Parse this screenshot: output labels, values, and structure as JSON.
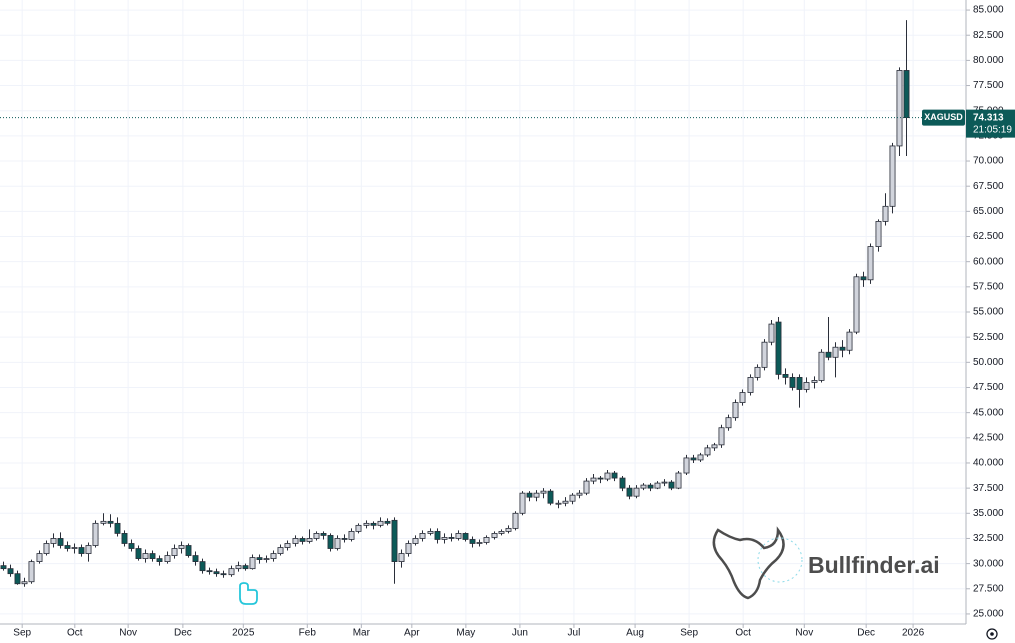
{
  "chart_data": {
    "type": "candlestick",
    "symbol": "XAGUSD",
    "countdown": "21:05:19",
    "watermark": "Bullfinder.ai",
    "up_color": "#d1d4dc",
    "down_color": "#0c5a58",
    "border_color": "#2a2e39",
    "grid": true,
    "ylim": [
      24,
      86
    ],
    "xlim": [
      -0.42,
      135.3
    ],
    "yticks": [
      {
        "value": 25,
        "label": "25.000"
      },
      {
        "value": 27.5,
        "label": "27.500"
      },
      {
        "value": 30,
        "label": "30.000"
      },
      {
        "value": 32.5,
        "label": "32.500"
      },
      {
        "value": 35,
        "label": "35.000"
      },
      {
        "value": 37.5,
        "label": "37.500"
      },
      {
        "value": 40,
        "label": "40.000"
      },
      {
        "value": 42.5,
        "label": "42.500"
      },
      {
        "value": 45,
        "label": "45.000"
      },
      {
        "value": 47.5,
        "label": "47.500"
      },
      {
        "value": 50,
        "label": "50.000"
      },
      {
        "value": 52.5,
        "label": "52.500"
      },
      {
        "value": 55,
        "label": "55.000"
      },
      {
        "value": 57.5,
        "label": "57.500"
      },
      {
        "value": 60,
        "label": "60.000"
      },
      {
        "value": 62.5,
        "label": "62.500"
      },
      {
        "value": 65,
        "label": "65.000"
      },
      {
        "value": 67.5,
        "label": "67.500"
      },
      {
        "value": 70,
        "label": "70.000"
      },
      {
        "value": 72.5,
        "label": "72.500"
      },
      {
        "value": 75,
        "label": "75.000"
      },
      {
        "value": 77.5,
        "label": "77.500"
      },
      {
        "value": 80,
        "label": "80.000"
      },
      {
        "value": 82.5,
        "label": "82.500"
      },
      {
        "value": 85,
        "label": "85.000"
      }
    ],
    "xticks": [
      {
        "value": 2.7,
        "label": "Sep"
      },
      {
        "value": 10.1,
        "label": "Oct"
      },
      {
        "value": 17.6,
        "label": "Nov"
      },
      {
        "value": 25.3,
        "label": "Dec"
      },
      {
        "value": 33.8,
        "label": "2025"
      },
      {
        "value": 42.8,
        "label": "Feb"
      },
      {
        "value": 50.4,
        "label": "Mar"
      },
      {
        "value": 57.5,
        "label": "Apr"
      },
      {
        "value": 65.1,
        "label": "May"
      },
      {
        "value": 72.7,
        "label": "Jun"
      },
      {
        "value": 80.3,
        "label": "Jul"
      },
      {
        "value": 88.9,
        "label": "Aug"
      },
      {
        "value": 96.5,
        "label": "Sep"
      },
      {
        "value": 104.1,
        "label": "Oct"
      },
      {
        "value": 112.7,
        "label": "Nov"
      },
      {
        "value": 121.4,
        "label": "Dec"
      },
      {
        "value": 128,
        "label": "2026"
      }
    ],
    "candles": [
      [
        29.8,
        30.2,
        29.3,
        29.5
      ],
      [
        29.5,
        29.9,
        28.7,
        29.0
      ],
      [
        29.0,
        29.3,
        27.9,
        28.0
      ],
      [
        28.0,
        28.6,
        27.7,
        28.2
      ],
      [
        28.2,
        30.4,
        28.0,
        30.2
      ],
      [
        30.2,
        31.3,
        30.0,
        31.0
      ],
      [
        31.0,
        32.3,
        30.8,
        32.0
      ],
      [
        32.0,
        33.0,
        31.6,
        32.5
      ],
      [
        32.5,
        33.1,
        31.5,
        31.8
      ],
      [
        31.8,
        32.2,
        31.2,
        31.5
      ],
      [
        31.5,
        32.0,
        31.0,
        31.6
      ],
      [
        31.6,
        31.9,
        30.7,
        31.0
      ],
      [
        31.0,
        32.1,
        30.2,
        31.8
      ],
      [
        31.8,
        34.3,
        31.6,
        34.0
      ],
      [
        34.0,
        35.0,
        33.8,
        34.2
      ],
      [
        34.2,
        34.9,
        33.6,
        34.0
      ],
      [
        34.0,
        34.6,
        32.7,
        33.0
      ],
      [
        33.0,
        33.3,
        31.7,
        32.0
      ],
      [
        32.0,
        32.4,
        31.2,
        31.5
      ],
      [
        31.5,
        31.8,
        30.3,
        30.5
      ],
      [
        30.5,
        31.4,
        30.1,
        31.0
      ],
      [
        31.0,
        31.3,
        30.2,
        30.5
      ],
      [
        30.5,
        30.8,
        29.8,
        30.2
      ],
      [
        30.2,
        31.2,
        30.0,
        30.8
      ],
      [
        30.8,
        31.9,
        30.5,
        31.5
      ],
      [
        31.5,
        32.2,
        31.0,
        31.8
      ],
      [
        31.8,
        32.0,
        30.6,
        30.8
      ],
      [
        30.8,
        31.2,
        29.8,
        30.2
      ],
      [
        30.2,
        30.5,
        29.0,
        29.3
      ],
      [
        29.3,
        29.6,
        28.9,
        29.2
      ],
      [
        29.2,
        29.5,
        28.7,
        29.0
      ],
      [
        29.0,
        29.3,
        28.6,
        28.9
      ],
      [
        28.9,
        29.8,
        28.7,
        29.5
      ],
      [
        29.5,
        30.2,
        29.2,
        29.8
      ],
      [
        29.8,
        30.0,
        29.3,
        29.5
      ],
      [
        29.5,
        30.9,
        29.4,
        30.6
      ],
      [
        30.6,
        30.9,
        30.0,
        30.4
      ],
      [
        30.4,
        30.8,
        30.1,
        30.5
      ],
      [
        30.5,
        31.3,
        30.2,
        31.0
      ],
      [
        31.0,
        31.9,
        30.8,
        31.6
      ],
      [
        31.6,
        32.3,
        31.3,
        32.0
      ],
      [
        32.0,
        32.8,
        31.7,
        32.5
      ],
      [
        32.5,
        32.7,
        31.9,
        32.2
      ],
      [
        32.2,
        33.4,
        32.0,
        32.5
      ],
      [
        32.5,
        33.2,
        32.3,
        33.0
      ],
      [
        33.0,
        33.2,
        32.4,
        32.8
      ],
      [
        32.8,
        33.0,
        31.2,
        31.5
      ],
      [
        31.5,
        32.8,
        31.3,
        32.5
      ],
      [
        32.5,
        32.9,
        32.1,
        32.4
      ],
      [
        32.4,
        33.5,
        32.2,
        33.2
      ],
      [
        33.2,
        34.0,
        33.0,
        33.8
      ],
      [
        33.8,
        34.3,
        33.5,
        34.0
      ],
      [
        34.0,
        34.2,
        33.4,
        33.8
      ],
      [
        33.8,
        34.6,
        33.6,
        34.2
      ],
      [
        34.2,
        34.5,
        33.8,
        34.0
      ],
      [
        34.3,
        34.6,
        28.0,
        30.2
      ],
      [
        30.2,
        31.4,
        29.6,
        31.0
      ],
      [
        31.0,
        32.3,
        30.7,
        32.0
      ],
      [
        32.0,
        32.8,
        31.8,
        32.5
      ],
      [
        32.5,
        33.3,
        32.2,
        33.0
      ],
      [
        33.0,
        33.5,
        32.8,
        33.2
      ],
      [
        33.2,
        33.5,
        32.0,
        32.4
      ],
      [
        32.4,
        33.0,
        32.0,
        32.6
      ],
      [
        32.6,
        33.0,
        32.2,
        32.5
      ],
      [
        32.5,
        33.3,
        32.3,
        33.0
      ],
      [
        33.0,
        33.1,
        32.2,
        32.4
      ],
      [
        32.4,
        32.7,
        31.6,
        32.0
      ],
      [
        32.0,
        32.4,
        31.7,
        32.1
      ],
      [
        32.1,
        32.8,
        31.9,
        32.6
      ],
      [
        32.6,
        33.2,
        32.4,
        33.0
      ],
      [
        33.0,
        33.4,
        32.8,
        33.2
      ],
      [
        33.2,
        33.8,
        33.0,
        33.5
      ],
      [
        33.5,
        35.2,
        33.3,
        35.0
      ],
      [
        35.0,
        37.2,
        34.8,
        37.0
      ],
      [
        37.0,
        37.2,
        36.2,
        36.6
      ],
      [
        36.6,
        37.3,
        36.2,
        37.0
      ],
      [
        37.0,
        37.5,
        36.5,
        37.2
      ],
      [
        37.2,
        37.4,
        35.8,
        36.0
      ],
      [
        36.0,
        36.3,
        35.5,
        36.0
      ],
      [
        36.0,
        36.6,
        35.7,
        36.2
      ],
      [
        36.2,
        37.0,
        35.9,
        36.8
      ],
      [
        36.8,
        37.3,
        36.5,
        37.0
      ],
      [
        37.0,
        38.5,
        36.8,
        38.2
      ],
      [
        38.2,
        38.9,
        37.9,
        38.5
      ],
      [
        38.5,
        38.7,
        38.0,
        38.4
      ],
      [
        38.4,
        39.3,
        38.2,
        39.0
      ],
      [
        39.0,
        39.2,
        38.2,
        38.5
      ],
      [
        38.5,
        38.7,
        37.2,
        37.5
      ],
      [
        37.5,
        37.8,
        36.4,
        36.7
      ],
      [
        36.7,
        37.8,
        36.5,
        37.5
      ],
      [
        37.5,
        38.0,
        37.3,
        37.8
      ],
      [
        37.8,
        38.0,
        37.2,
        37.5
      ],
      [
        37.5,
        38.2,
        37.4,
        38.0
      ],
      [
        38.0,
        38.4,
        37.7,
        38.1
      ],
      [
        38.1,
        38.3,
        37.3,
        37.5
      ],
      [
        37.5,
        39.2,
        37.4,
        39.0
      ],
      [
        39.0,
        40.8,
        38.8,
        40.5
      ],
      [
        40.5,
        40.8,
        40.0,
        40.3
      ],
      [
        40.3,
        41.0,
        40.1,
        40.8
      ],
      [
        40.8,
        41.8,
        40.6,
        41.5
      ],
      [
        41.5,
        42.0,
        41.2,
        41.8
      ],
      [
        41.8,
        43.8,
        41.5,
        43.5
      ],
      [
        43.5,
        44.8,
        43.2,
        44.5
      ],
      [
        44.5,
        46.3,
        44.2,
        46.0
      ],
      [
        46.0,
        47.3,
        45.7,
        47.0
      ],
      [
        47.0,
        48.8,
        46.7,
        48.5
      ],
      [
        48.5,
        49.8,
        48.2,
        49.5
      ],
      [
        49.5,
        52.3,
        49.2,
        52.0
      ],
      [
        52.0,
        54.2,
        51.7,
        53.8
      ],
      [
        54.0,
        54.5,
        48.3,
        48.8
      ],
      [
        48.8,
        49.4,
        47.8,
        48.5
      ],
      [
        48.5,
        48.9,
        47.2,
        47.5
      ],
      [
        48.5,
        48.8,
        45.5,
        47.3
      ],
      [
        47.3,
        48.5,
        47.0,
        48.0
      ],
      [
        48.0,
        48.6,
        47.4,
        48.2
      ],
      [
        48.2,
        51.3,
        48.0,
        51.0
      ],
      [
        51.0,
        54.5,
        50.2,
        50.5
      ],
      [
        50.5,
        52.0,
        48.5,
        51.5
      ],
      [
        51.5,
        52.2,
        50.5,
        51.2
      ],
      [
        51.2,
        53.3,
        50.8,
        53.0
      ],
      [
        53.0,
        58.8,
        52.8,
        58.5
      ],
      [
        58.5,
        59.0,
        57.5,
        58.2
      ],
      [
        58.2,
        61.8,
        57.8,
        61.5
      ],
      [
        61.5,
        64.2,
        61.0,
        64.0
      ],
      [
        64.0,
        66.8,
        63.6,
        65.5
      ],
      [
        65.5,
        71.8,
        64.8,
        71.5
      ],
      [
        71.5,
        79.3,
        70.5,
        79.0
      ],
      [
        79.0,
        84.0,
        70.5,
        74.313
      ]
    ]
  }
}
